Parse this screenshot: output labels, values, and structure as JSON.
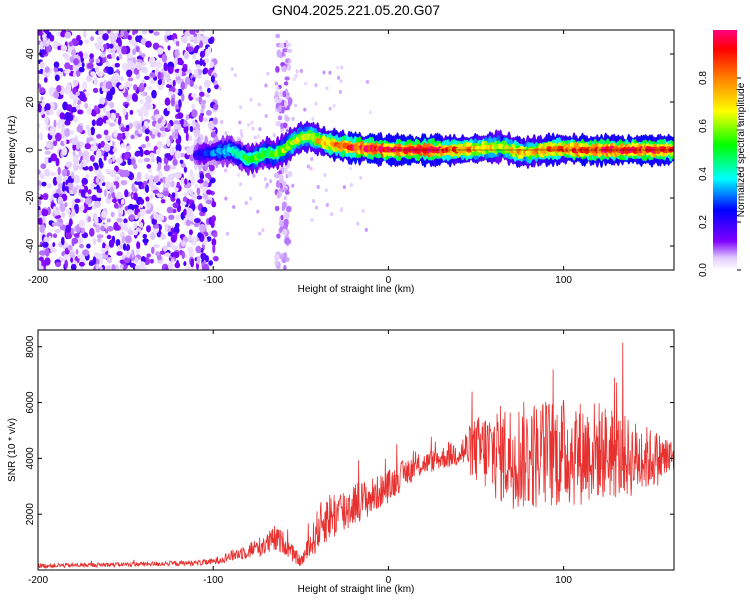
{
  "title": "GN04.2025.221.05.20.G07",
  "chart_data": [
    {
      "type": "heatmap",
      "xlabel": "Height of straight line (km)",
      "ylabel": "Frequency (Hz)",
      "xlim": [
        -200,
        163
      ],
      "ylim": [
        -50,
        50
      ],
      "x_ticks": [
        -200,
        -100,
        0,
        100
      ],
      "y_ticks": [
        -40,
        -20,
        0,
        20,
        40
      ],
      "colorbar": {
        "label": "Normalized spectral amplitude",
        "range": [
          0,
          1
        ],
        "ticks": [
          "0.0",
          "0.2",
          "0.4",
          "0.6",
          "0.8"
        ],
        "tick_values": [
          0.0,
          0.2,
          0.4,
          0.6,
          0.8
        ],
        "colormap": "rainbow"
      },
      "ridge": {
        "x": [
          -110,
          -100,
          -90,
          -85,
          -80,
          -75,
          -70,
          -65,
          -60,
          -55,
          -50,
          -45,
          -40,
          -35,
          -30,
          -20,
          -10,
          0,
          20,
          40,
          60,
          65,
          70,
          75,
          80,
          85,
          90,
          100,
          110,
          120,
          130,
          140,
          150,
          163
        ],
        "frequency": [
          -2,
          -1,
          0,
          -2,
          -4,
          -3,
          -1,
          -2,
          0,
          3,
          5,
          6,
          4,
          3,
          2,
          1,
          0.5,
          0,
          0,
          0,
          1,
          1.5,
          0,
          -1,
          -1,
          -0.5,
          0,
          0.5,
          0,
          0,
          0,
          0,
          0,
          0
        ],
        "amplitude": [
          0.2,
          0.3,
          0.4,
          0.45,
          0.5,
          0.55,
          0.5,
          0.55,
          0.6,
          0.65,
          0.6,
          0.65,
          0.7,
          0.75,
          0.85,
          0.9,
          0.92,
          0.95,
          0.95,
          0.8,
          0.7,
          0.6,
          0.7,
          0.75,
          0.7,
          0.75,
          0.8,
          0.85,
          0.9,
          0.9,
          0.9,
          0.92,
          0.9,
          0.9
        ]
      },
      "noise_region_x": [
        -200,
        -98
      ]
    },
    {
      "type": "line",
      "xlabel": "Height of straight line (km)",
      "ylabel": "SNR (10 * v/v)",
      "xlim": [
        -200,
        163
      ],
      "ylim": [
        0,
        8600
      ],
      "x_ticks": [
        -200,
        -100,
        0,
        100
      ],
      "y_ticks": [
        2000,
        4000,
        6000,
        8000
      ],
      "series": [
        {
          "color": "#e8312f",
          "envelope": {
            "x": [
              -200,
              -150,
              -110,
              -100,
              -90,
              -80,
              -70,
              -65,
              -60,
              -55,
              -50,
              -45,
              -40,
              -35,
              -30,
              -25,
              -20,
              -15,
              -10,
              -5,
              0,
              10,
              20,
              30,
              40,
              45,
              50,
              60,
              70,
              80,
              90,
              100,
              110,
              120,
              130,
              140,
              150,
              163
            ],
            "mean": [
              150,
              200,
              250,
              300,
              500,
              700,
              900,
              1100,
              1000,
              600,
              300,
              800,
              1500,
              1900,
              2000,
              2100,
              2400,
              2500,
              2600,
              2800,
              3000,
              3500,
              3800,
              4000,
              4200,
              4300,
              4300,
              4200,
              4100,
              4100,
              4200,
              4200,
              4200,
              4300,
              4100,
              4000,
              4000,
              4000
            ],
            "spread": [
              80,
              80,
              100,
              120,
              200,
              300,
              400,
              500,
              400,
              300,
              200,
              500,
              800,
              900,
              900,
              900,
              800,
              700,
              700,
              600,
              600,
              500,
              400,
              400,
              500,
              800,
              1200,
              1700,
              1900,
              2000,
              2000,
              2000,
              1900,
              1800,
              1600,
              1400,
              1100,
              700
            ]
          }
        }
      ]
    }
  ]
}
